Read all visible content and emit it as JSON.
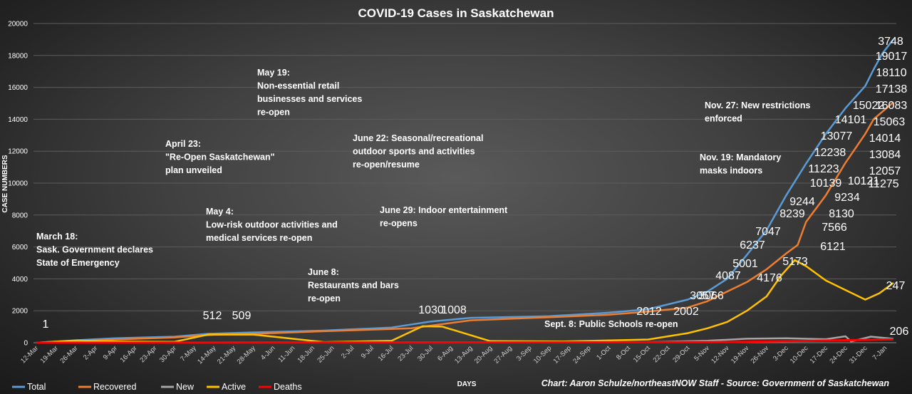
{
  "chart_data": {
    "type": "line",
    "title": "COVID-19 Cases in Saskatchewan",
    "xlabel": "DAYS",
    "ylabel": "CASE NUMBERS",
    "ylim": [
      0,
      20000
    ],
    "yticks": [
      0,
      2000,
      4000,
      6000,
      8000,
      10000,
      12000,
      14000,
      16000,
      18000,
      20000
    ],
    "x_start": "2020-03-12",
    "x_end": "2021-01-10",
    "x_tick_labels": [
      "12-Mar",
      "19-Mar",
      "26-Mar",
      "2-Apr",
      "9-Apr",
      "16-Apr",
      "23-Apr",
      "30-Apr",
      "7-May",
      "14-May",
      "21-May",
      "28-May",
      "4-Jun",
      "11-Jun",
      "18-Jun",
      "25-Jun",
      "2-Jul",
      "9-Jul",
      "16-Jul",
      "23-Jul",
      "30-Jul",
      "6-Aug",
      "13-Aug",
      "20-Aug",
      "27-Aug",
      "3-Sep",
      "10-Sep",
      "17-Sep",
      "24-Sep",
      "1-Oct",
      "8-Oct",
      "15-Oct",
      "22-Oct",
      "29-Oct",
      "5-Nov",
      "12-Nov",
      "19-Nov",
      "26-Nov",
      "3-Dec",
      "10-Dec",
      "17-Dec",
      "24-Dec",
      "31-Dec",
      "7-Jan"
    ],
    "grid": true,
    "legend": "bottom",
    "series": [
      {
        "name": "Total",
        "color": "#5b9bd5",
        "points": [
          [
            "2020-03-12",
            1
          ],
          [
            "2020-03-26",
            150
          ],
          [
            "2020-04-09",
            280
          ],
          [
            "2020-04-30",
            380
          ],
          [
            "2020-05-12",
            560
          ],
          [
            "2020-05-26",
            640
          ],
          [
            "2020-06-22",
            760
          ],
          [
            "2020-07-16",
            950
          ],
          [
            "2020-07-30",
            1330
          ],
          [
            "2020-08-13",
            1560
          ],
          [
            "2020-09-10",
            1660
          ],
          [
            "2020-10-01",
            1880
          ],
          [
            "2020-10-15",
            2100
          ],
          [
            "2020-10-29",
            2700
          ],
          [
            "2020-11-05",
            3200
          ],
          [
            "2020-11-12",
            4000
          ],
          [
            "2020-11-19",
            5500
          ],
          [
            "2020-11-26",
            7047
          ],
          [
            "2020-12-03",
            9244
          ],
          [
            "2020-12-10",
            11223
          ],
          [
            "2020-12-17",
            13077
          ],
          [
            "2020-12-24",
            14700
          ],
          [
            "2020-12-31",
            16083
          ],
          [
            "2021-01-03",
            17138
          ],
          [
            "2021-01-06",
            18110
          ],
          [
            "2021-01-10",
            19017
          ]
        ]
      },
      {
        "name": "Recovered",
        "color": "#ed7d31",
        "points": [
          [
            "2020-03-12",
            0
          ],
          [
            "2020-03-26",
            80
          ],
          [
            "2020-04-09",
            200
          ],
          [
            "2020-04-30",
            330
          ],
          [
            "2020-05-14",
            500
          ],
          [
            "2020-05-28",
            560
          ],
          [
            "2020-06-22",
            720
          ],
          [
            "2020-07-23",
            900
          ],
          [
            "2020-08-13",
            1400
          ],
          [
            "2020-09-10",
            1600
          ],
          [
            "2020-10-01",
            1750
          ],
          [
            "2020-10-15",
            1950
          ],
          [
            "2020-10-29",
            2200
          ],
          [
            "2020-11-05",
            2600
          ],
          [
            "2020-11-12",
            3200
          ],
          [
            "2020-11-19",
            3800
          ],
          [
            "2020-11-26",
            4600
          ],
          [
            "2020-12-03",
            5600
          ],
          [
            "2020-12-07",
            6121
          ],
          [
            "2020-12-10",
            7566
          ],
          [
            "2020-12-17",
            9234
          ],
          [
            "2020-12-24",
            11275
          ],
          [
            "2020-12-31",
            13084
          ],
          [
            "2021-01-03",
            14014
          ],
          [
            "2021-01-10",
            15063
          ]
        ]
      },
      {
        "name": "New",
        "color": "#a5a5a5",
        "points": [
          [
            "2020-03-12",
            0
          ],
          [
            "2020-04-09",
            10
          ],
          [
            "2020-05-14",
            15
          ],
          [
            "2020-07-16",
            20
          ],
          [
            "2020-10-15",
            40
          ],
          [
            "2020-11-05",
            120
          ],
          [
            "2020-11-19",
            250
          ],
          [
            "2020-12-03",
            280
          ],
          [
            "2020-12-17",
            220
          ],
          [
            "2020-12-24",
            400
          ],
          [
            "2020-12-26",
            80
          ],
          [
            "2021-01-02",
            380
          ],
          [
            "2021-01-10",
            247
          ]
        ]
      },
      {
        "name": "Active",
        "color": "#ffc000",
        "points": [
          [
            "2020-03-12",
            1
          ],
          [
            "2020-03-26",
            140
          ],
          [
            "2020-04-09",
            80
          ],
          [
            "2020-04-30",
            60
          ],
          [
            "2020-05-12",
            512
          ],
          [
            "2020-05-28",
            509
          ],
          [
            "2020-06-22",
            40
          ],
          [
            "2020-07-16",
            120
          ],
          [
            "2020-07-27",
            1030
          ],
          [
            "2020-08-03",
            1008
          ],
          [
            "2020-08-20",
            100
          ],
          [
            "2020-09-15",
            80
          ],
          [
            "2020-10-15",
            200
          ],
          [
            "2020-10-29",
            600
          ],
          [
            "2020-11-05",
            900
          ],
          [
            "2020-11-12",
            1300
          ],
          [
            "2020-11-19",
            2000
          ],
          [
            "2020-11-26",
            2900
          ],
          [
            "2020-12-01",
            4176
          ],
          [
            "2020-12-06",
            5173
          ],
          [
            "2020-12-10",
            4800
          ],
          [
            "2020-12-17",
            3900
          ],
          [
            "2020-12-24",
            3300
          ],
          [
            "2020-12-31",
            2700
          ],
          [
            "2021-01-05",
            3100
          ],
          [
            "2021-01-10",
            3748
          ]
        ]
      },
      {
        "name": "Deaths",
        "color": "#ff0000",
        "points": [
          [
            "2020-03-12",
            0
          ],
          [
            "2020-06-01",
            10
          ],
          [
            "2020-10-01",
            25
          ],
          [
            "2020-11-12",
            40
          ],
          [
            "2020-12-10",
            110
          ],
          [
            "2021-01-10",
            206
          ]
        ]
      }
    ],
    "data_labels": [
      {
        "series": "Total",
        "date": "2020-03-12",
        "value": 1,
        "text": "1"
      },
      {
        "series": "Active",
        "date": "2020-05-12",
        "value": 512,
        "text": "512"
      },
      {
        "series": "Active",
        "date": "2020-05-28",
        "value": 509,
        "text": "509"
      },
      {
        "series": "Active",
        "date": "2020-07-27",
        "value": 1030,
        "text": "1030"
      },
      {
        "series": "Active",
        "date": "2020-08-03",
        "value": 1008,
        "text": "1008"
      },
      {
        "series": "Total",
        "date": "2020-10-13",
        "value": 2012,
        "text": "2012"
      },
      {
        "series": "Recovered",
        "date": "2020-10-22",
        "value": 2002,
        "text": "2002"
      },
      {
        "series": "Recovered",
        "date": "2020-10-29",
        "value": 3066,
        "text": "3066"
      },
      {
        "series": "Active",
        "date": "2020-11-12",
        "value": 3057,
        "text": "3057"
      },
      {
        "series": "Total",
        "date": "2020-11-05",
        "value": 4087,
        "text": "4087"
      },
      {
        "series": "Total",
        "date": "2020-11-08",
        "value": 5001,
        "text": "5001"
      },
      {
        "series": "Active",
        "date": "2020-11-22",
        "value": 4176,
        "text": "4176"
      },
      {
        "series": "Active",
        "date": "2020-11-29",
        "value": 5173,
        "text": "5173"
      },
      {
        "series": "Recovered",
        "date": "2020-11-21",
        "value": 6237,
        "text": "6237"
      },
      {
        "series": "Total",
        "date": "2020-11-21",
        "value": 7047,
        "text": "7047"
      },
      {
        "series": "Recovered",
        "date": "2020-11-28",
        "value": 8239,
        "text": "8239"
      },
      {
        "series": "Total",
        "date": "2020-11-28",
        "value": 9244,
        "text": "9244"
      },
      {
        "series": "Recovered",
        "date": "2020-12-05",
        "value": 10139,
        "text": "10139"
      },
      {
        "series": "Total",
        "date": "2020-12-05",
        "value": 11223,
        "text": "11223"
      },
      {
        "series": "Total",
        "date": "2020-12-05",
        "value": 12238,
        "text": "12238"
      },
      {
        "series": "Total",
        "date": "2020-12-05",
        "value": 13077,
        "text": "13077"
      },
      {
        "series": "Total",
        "date": "2020-12-11",
        "value": 14101,
        "text": "14101"
      },
      {
        "series": "Total",
        "date": "2020-12-16",
        "value": 15022,
        "text": "15022"
      },
      {
        "series": "Recovered",
        "date": "2020-12-07",
        "value": 6121,
        "text": "6121"
      },
      {
        "series": "Recovered",
        "date": "2020-12-10",
        "value": 7566,
        "text": "7566"
      },
      {
        "series": "Recovered",
        "date": "2020-12-13",
        "value": 8130,
        "text": "8130"
      },
      {
        "series": "Recovered",
        "date": "2020-12-15",
        "value": 9234,
        "text": "9234"
      },
      {
        "series": "Recovered",
        "date": "2020-12-19",
        "value": 10121,
        "text": "10121"
      },
      {
        "series": "Recovered",
        "date": "2020-12-22",
        "value": 11275,
        "text": "11275"
      },
      {
        "series": "Recovered",
        "date": "2020-12-26",
        "value": 12057,
        "text": "12057"
      },
      {
        "series": "Recovered",
        "date": "2020-12-27",
        "value": 13084,
        "text": "13084"
      },
      {
        "series": "Recovered",
        "date": "2020-12-27",
        "value": 14014,
        "text": "14014"
      },
      {
        "series": "Recovered",
        "date": "2020-12-27",
        "value": 15063,
        "text": "15063"
      },
      {
        "series": "Total",
        "date": "2020-12-27",
        "value": 16083,
        "text": "16083"
      },
      {
        "series": "Total",
        "date": "2020-12-27",
        "value": 17138,
        "text": "17138"
      },
      {
        "series": "Total",
        "date": "2020-12-27",
        "value": 18110,
        "text": "18110"
      },
      {
        "series": "Total",
        "date": "2020-12-27",
        "value": 19017,
        "text": "19017"
      },
      {
        "series": "Active",
        "date": "2020-12-27",
        "value": 3748,
        "text": "3748"
      },
      {
        "series": "New",
        "date": "2020-12-27",
        "value": 247,
        "text": "247"
      },
      {
        "series": "Deaths",
        "date": "2020-12-27",
        "value": 206,
        "text": "206"
      }
    ],
    "annotations": [
      {
        "lines": [
          "March 18:",
          "Sask. Government declares",
          "State of Emergency"
        ]
      },
      {
        "lines": [
          "April 23:",
          "\"Re-Open Saskatchewan\"",
          "plan unveiled"
        ]
      },
      {
        "lines": [
          "May 4:",
          "Low-risk outdoor activities and",
          "medical services re-open"
        ]
      },
      {
        "lines": [
          "May 19:",
          "Non-essential retail",
          "businesses and services",
          "re-open"
        ]
      },
      {
        "lines": [
          "June 8:",
          "Restaurants and bars",
          "re-open"
        ]
      },
      {
        "lines": [
          "June 22: Seasonal/recreational",
          "outdoor sports and activities",
          "re-open/resume"
        ]
      },
      {
        "lines": [
          "June 29: Indoor entertainment",
          "re-opens"
        ]
      },
      {
        "lines": [
          "Sept. 8: Public Schools re-open"
        ]
      },
      {
        "lines": [
          "Nov. 19: Mandatory",
          "masks indoors"
        ]
      },
      {
        "lines": [
          "Nov. 27: New restrictions",
          "enforced"
        ]
      }
    ],
    "source": "Chart: Aaron Schulze/northeastNOW Staff - Source: Government of Saskatchewan"
  }
}
